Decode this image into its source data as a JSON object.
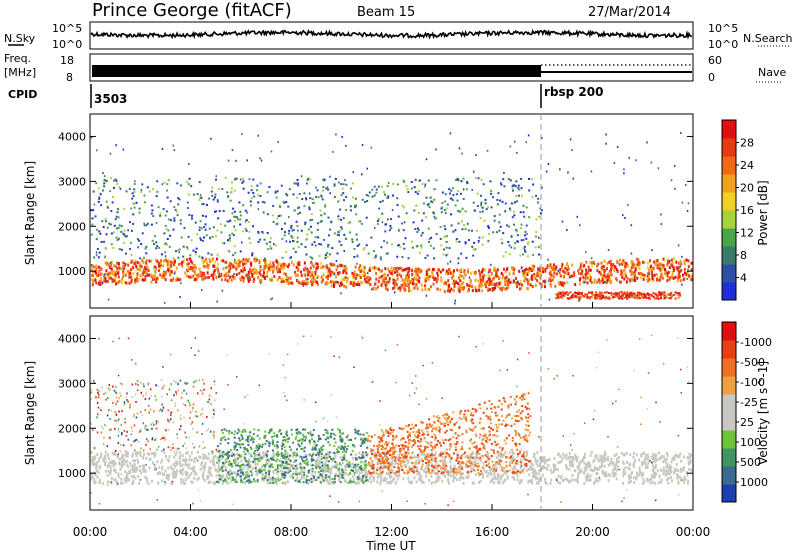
{
  "header": {
    "station": "Prince George (fitACF)",
    "beam": "Beam 15",
    "date": "27/Mar/2014"
  },
  "strip_labels": {
    "nsky": "N.Sky",
    "freq_line1": "Freq.",
    "freq_line2": "[MHz]",
    "cpid": "CPID",
    "nsearch": "N.Search",
    "nave": "Nave"
  },
  "strip_ticks": {
    "noise_left_top": "10^5",
    "noise_left_bottom": "10^0",
    "noise_right_top": "10^5",
    "noise_right_bottom": "10^0",
    "freq_left_top": "18",
    "freq_left_bottom": "8",
    "nave_right_top": "60",
    "nave_right_bottom": "0"
  },
  "cpid_labels": [
    "3503",
    "rbsp 200"
  ],
  "x_axis": {
    "label": "Time UT",
    "ticks": [
      "00:00",
      "04:00",
      "08:00",
      "12:00",
      "16:00",
      "20:00",
      "00:00"
    ]
  },
  "panels": {
    "power": {
      "ylabel": "Slant Range [km]",
      "yticks": [
        "1000",
        "2000",
        "3000",
        "4000"
      ]
    },
    "velocity": {
      "ylabel": "Slant Range [km]",
      "yticks": [
        "1000",
        "2000",
        "3000",
        "4000"
      ]
    }
  },
  "colorbars": {
    "power": {
      "label": "Power [dB]",
      "ticks": [
        "4",
        "8",
        "12",
        "16",
        "20",
        "24",
        "28"
      ],
      "colors": [
        "#1f2fd8",
        "#2d4fa8",
        "#3a7a6a",
        "#4aa54a",
        "#a8d23a",
        "#f0d020",
        "#f5a020",
        "#ef6a18",
        "#e83a10",
        "#e01010"
      ]
    },
    "velocity": {
      "label": "Velocity [m s^-1]",
      "ticks": [
        "1000",
        "500",
        "100",
        "25",
        "-25",
        "-100",
        "-500",
        "-1000"
      ],
      "colors": [
        "#1f3fb0",
        "#3a6a90",
        "#3f9460",
        "#6cc43a",
        "#c8c8c0",
        "#c8c8c0",
        "#f0a040",
        "#ef7020",
        "#e84010",
        "#e01010"
      ]
    }
  },
  "chart_data": [
    {
      "type": "line",
      "title": "Prince George (fitACF) Beam 15 27/Mar/2014",
      "x_range_hours": [
        0,
        24
      ],
      "series": [
        {
          "name": "N.Sky",
          "level": "~10^4, roughly flat across the day"
        },
        {
          "name": "Freq.",
          "values_mhz": "~10-11 throughout"
        },
        {
          "name": "Nave",
          "note": "dotted line after ~18 UT"
        }
      ]
    },
    {
      "type": "heatmap",
      "quantity": "Power [dB]",
      "x_range_hours": [
        0,
        24
      ],
      "ylim_km": [
        180,
        4500
      ],
      "scale": [
        0,
        30
      ],
      "features": [
        {
          "x_hours": [
            0,
            24
          ],
          "y_km": [
            700,
            1300
          ],
          "value_db": 28
        },
        {
          "x_hours": [
            0,
            18
          ],
          "y_km": [
            1500,
            3000
          ],
          "value_db": 6
        },
        {
          "x_hours": [
            19,
            23
          ],
          "y_km": [
            450,
            650
          ],
          "value_db": 26
        }
      ]
    },
    {
      "type": "heatmap",
      "quantity": "Velocity [m s^-1]",
      "x_range_hours": [
        0,
        24
      ],
      "ylim_km": [
        180,
        4500
      ],
      "scale": [
        -1000,
        1000
      ],
      "features": [
        {
          "x_hours": [
            0,
            24
          ],
          "y_km": [
            800,
            1500
          ],
          "value_ms": 0
        },
        {
          "x_hours": [
            5,
            11
          ],
          "y_km": [
            800,
            2000
          ],
          "value_ms": 400
        },
        {
          "x_hours": [
            11,
            17.5
          ],
          "y_km": [
            1000,
            2800
          ],
          "value_ms": -500
        }
      ]
    }
  ]
}
